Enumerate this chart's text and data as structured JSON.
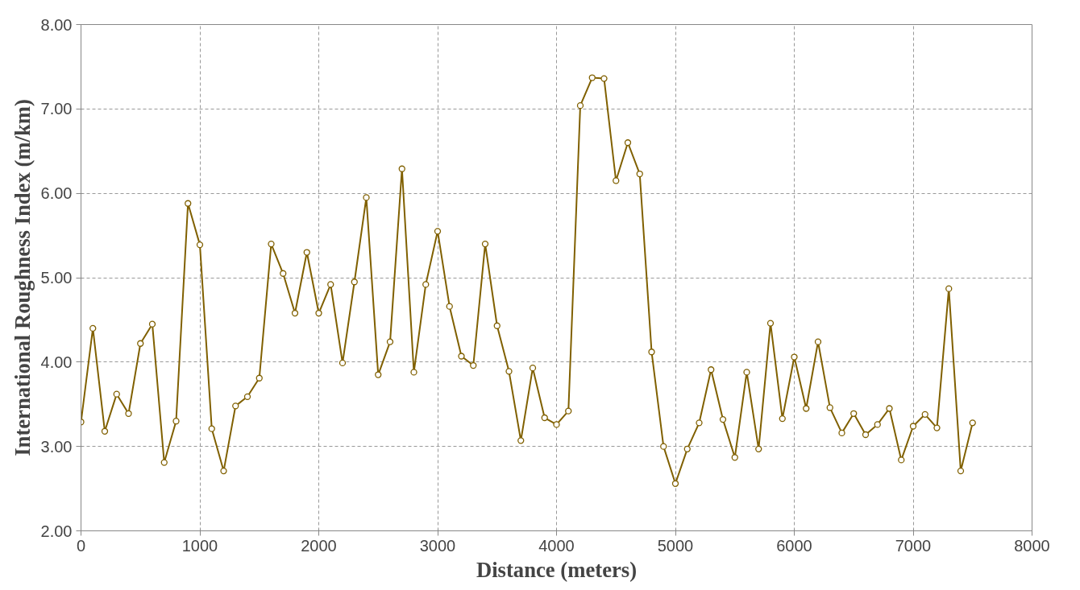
{
  "chart_data": {
    "type": "line",
    "xlabel": "Distance (meters)",
    "ylabel": "International Roughness Index (m/km)",
    "xlim": [
      0,
      8000
    ],
    "xticks": [
      0,
      1000,
      2000,
      3000,
      4000,
      5000,
      6000,
      7000,
      8000
    ],
    "ylim": [
      2,
      8
    ],
    "yticks": [
      {
        "value": 2,
        "label": "2.00"
      },
      {
        "value": 3,
        "label": "3.00"
      },
      {
        "value": 4,
        "label": "4.00"
      },
      {
        "value": 5,
        "label": "5.00"
      },
      {
        "value": 6,
        "label": "6.00"
      },
      {
        "value": 7,
        "label": "7.00"
      },
      {
        "value": 8,
        "label": "8.00"
      }
    ],
    "grid": true,
    "marker": "circle",
    "line_style": "solid",
    "x": [
      0,
      100,
      200,
      300,
      400,
      500,
      600,
      700,
      800,
      900,
      1000,
      1100,
      1200,
      1300,
      1400,
      1500,
      1600,
      1700,
      1800,
      1900,
      2000,
      2100,
      2200,
      2300,
      2400,
      2500,
      2600,
      2700,
      2800,
      2900,
      3000,
      3100,
      3200,
      3300,
      3400,
      3500,
      3600,
      3700,
      3800,
      3900,
      4000,
      4100,
      4200,
      4300,
      4400,
      4500,
      4600,
      4700,
      4800,
      4900,
      5000,
      5100,
      5200,
      5300,
      5400,
      5500,
      5600,
      5700,
      5800,
      5900,
      6000,
      6100,
      6200,
      6300,
      6400,
      6500,
      6600,
      6700,
      6800,
      6900,
      7000,
      7100,
      7200,
      7300,
      7400,
      7500
    ],
    "series": [
      {
        "color": "#806000",
        "values": [
          3.29,
          4.4,
          3.18,
          3.62,
          3.39,
          4.22,
          4.45,
          2.81,
          3.3,
          5.88,
          5.39,
          3.21,
          2.71,
          3.48,
          3.59,
          3.81,
          5.4,
          5.05,
          4.58,
          5.3,
          4.58,
          4.92,
          3.99,
          4.95,
          5.95,
          3.85,
          4.24,
          6.29,
          3.88,
          4.92,
          5.55,
          4.66,
          4.07,
          3.96,
          5.4,
          4.43,
          3.89,
          3.07,
          3.93,
          3.34,
          3.26,
          3.42,
          7.04,
          7.37,
          7.36,
          6.15,
          6.6,
          6.23,
          4.12,
          3.0,
          2.56,
          2.97,
          3.28,
          3.91,
          3.32,
          2.87,
          3.88,
          2.97,
          4.46,
          3.33,
          4.06,
          3.45,
          4.24,
          3.46,
          3.16,
          3.39,
          3.14,
          3.26,
          3.45,
          2.84,
          3.24,
          3.38,
          3.22,
          4.87,
          2.71,
          3.28
        ]
      }
    ]
  }
}
